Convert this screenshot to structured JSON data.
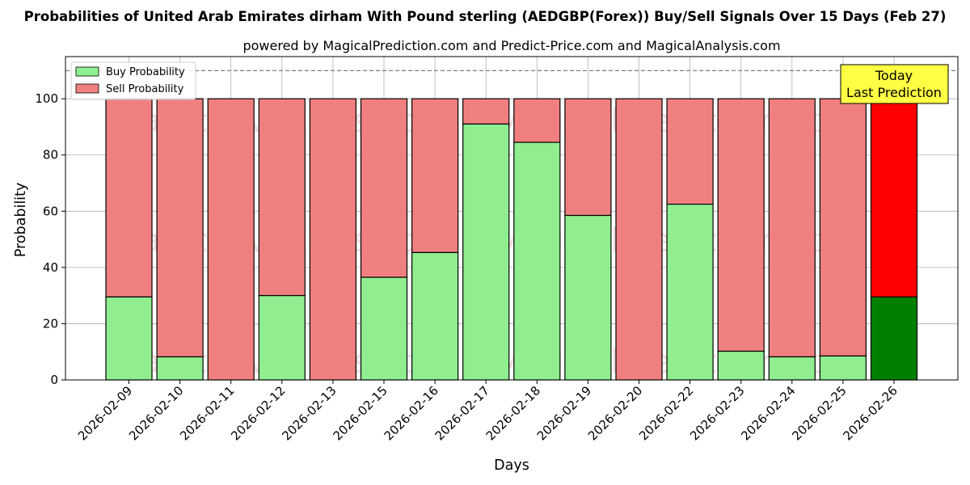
{
  "chart_data": {
    "type": "bar",
    "title": "Probabilities of United Arab Emirates dirham With Pound sterling (AEDGBP(Forex)) Buy/Sell Signals Over 15 Days (Feb 27)",
    "subtitle": "powered by MagicalPrediction.com and Predict-Price.com and MagicalAnalysis.com",
    "xlabel": "Days",
    "ylabel": "Probability",
    "ylim": [
      0,
      115
    ],
    "yticks": [
      0,
      20,
      40,
      60,
      80,
      100
    ],
    "reference_line": 110,
    "grid": true,
    "stacked": true,
    "legend_position": "top-left",
    "categories": [
      "2026-02-09",
      "2026-02-10",
      "2026-02-11",
      "2026-02-12",
      "2026-02-13",
      "2026-02-15",
      "2026-02-16",
      "2026-02-17",
      "2026-02-18",
      "2026-02-19",
      "2026-02-20",
      "2026-02-22",
      "2026-02-23",
      "2026-02-24",
      "2026-02-25",
      "2026-02-26"
    ],
    "series": [
      {
        "name": "Buy Probability",
        "color": "#90ee90",
        "highlight_color": "#008000",
        "values": [
          29.5,
          8.2,
          0,
          30,
          0,
          36.5,
          45.3,
          91,
          84.5,
          58.5,
          0,
          62.5,
          10.2,
          8.2,
          8.5,
          29.5
        ]
      },
      {
        "name": "Sell Probability",
        "color": "#f08080",
        "highlight_color": "#ff0000",
        "values": [
          70.5,
          91.8,
          100,
          70,
          100,
          63.5,
          54.7,
          9,
          15.5,
          41.5,
          100,
          37.5,
          89.8,
          91.8,
          91.5,
          70.5
        ]
      }
    ],
    "annotation": {
      "line1": "Today",
      "line2": "Last Prediction",
      "color": "#ffff44"
    },
    "watermarks": [
      "MagicalAnalysis.com",
      "MagicalPrediction.com"
    ]
  }
}
